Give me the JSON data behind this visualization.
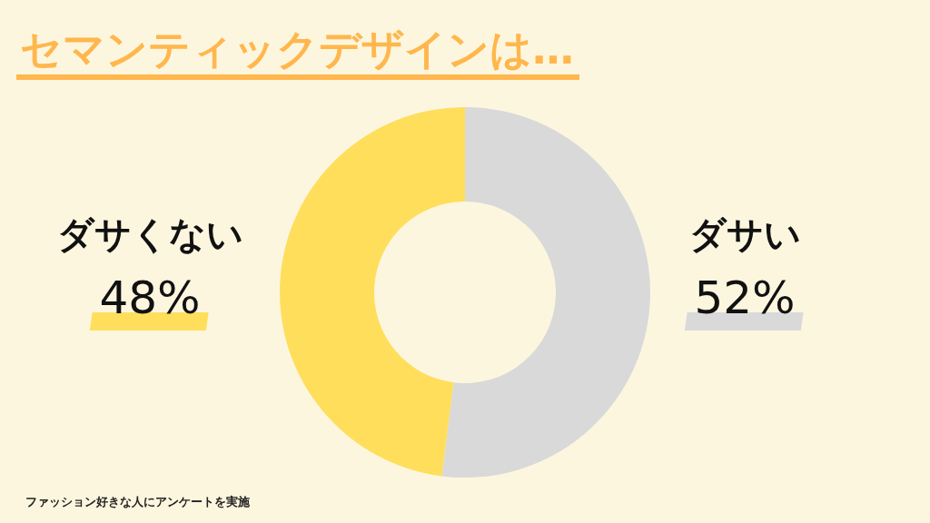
{
  "chart_data": {
    "type": "donut",
    "title": "セマンティックデザインは…",
    "categories": [
      "ダサい",
      "ダサくない"
    ],
    "values": [
      52,
      48
    ],
    "value_labels": [
      "52%",
      "48%"
    ],
    "colors": [
      "#d9d9d9",
      "#ffde5c"
    ],
    "annotations": [
      "ファッション好きな人にアンケートを実施"
    ]
  }
}
